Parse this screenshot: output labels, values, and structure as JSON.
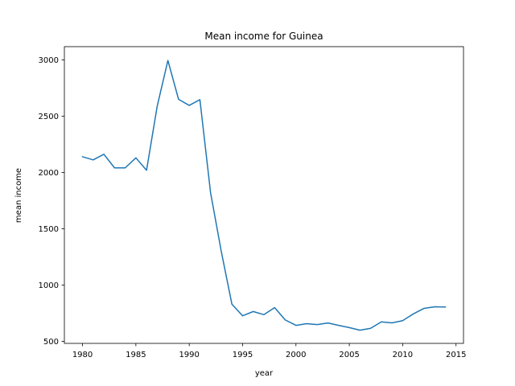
{
  "chart_data": {
    "type": "line",
    "title": "Mean income for Guinea",
    "xlabel": "year",
    "ylabel": "mean income",
    "xlim": [
      1978.3,
      2015.7
    ],
    "ylim": [
      482,
      3118
    ],
    "xticks": [
      1980,
      1985,
      1990,
      1995,
      2000,
      2005,
      2010,
      2015
    ],
    "yticks": [
      500,
      1000,
      1500,
      2000,
      2500,
      3000
    ],
    "grid": false,
    "series": [
      {
        "color": "#1f77b4",
        "x": [
          1980,
          1981,
          1982,
          1983,
          1984,
          1985,
          1986,
          1987,
          1988,
          1989,
          1990,
          1991,
          1992,
          1993,
          1994,
          1995,
          1996,
          1997,
          1998,
          1999,
          2000,
          2001,
          2002,
          2003,
          2004,
          2005,
          2006,
          2007,
          2008,
          2009,
          2010,
          2011,
          2012,
          2013,
          2014
        ],
        "y": [
          2140,
          2112,
          2162,
          2041,
          2041,
          2130,
          2020,
          2590,
          2995,
          2650,
          2596,
          2647,
          1820,
          1300,
          830,
          727,
          765,
          737,
          800,
          690,
          642,
          657,
          649,
          663,
          642,
          622,
          599,
          616,
          673,
          664,
          684,
          744,
          793,
          807,
          805
        ]
      }
    ]
  }
}
